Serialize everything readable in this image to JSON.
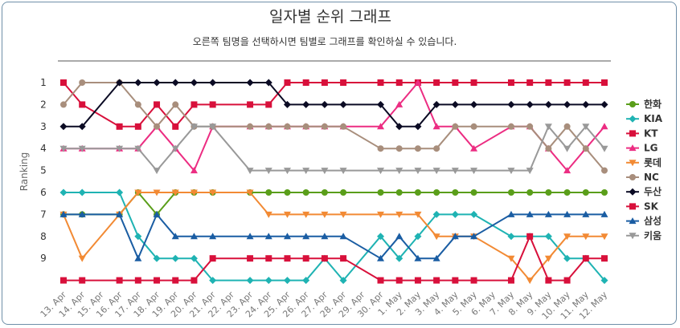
{
  "chart_data": {
    "type": "line",
    "title": "일자별 순위 그래프",
    "subtitle": "오른쪽 팀명을 선택하시면 팀별로 그래프를 확인하실 수 있습니다.",
    "ylabel": "Ranking",
    "xlabel": "",
    "yticks": [
      "1",
      "2",
      "3",
      "4",
      "5",
      "6",
      "7",
      "8",
      "9"
    ],
    "y_reversed": true,
    "ylim": [
      1,
      10
    ],
    "legend_position": "right",
    "categories": [
      "13. Apr",
      "14. Apr",
      "15. Apr",
      "16. Apr",
      "17. Apr",
      "18. Apr",
      "19. Apr",
      "20. Apr",
      "21. Apr",
      "22. Apr",
      "23. Apr",
      "24. Apr",
      "25. Apr",
      "26. Apr",
      "27. Apr",
      "28. Apr",
      "29. Apr",
      "30. Apr",
      "1. May",
      "2. May",
      "3. May",
      "4. May",
      "5. May",
      "6. May",
      "7. May",
      "8. May",
      "9. May",
      "10. May",
      "11. May",
      "12. May"
    ],
    "series": [
      {
        "name": "한화",
        "color": "#5a9e1a",
        "marker": "circle",
        "values": [
          7,
          7,
          null,
          7,
          6,
          7,
          6,
          6,
          6,
          null,
          6,
          6,
          6,
          6,
          6,
          6,
          null,
          6,
          6,
          6,
          6,
          6,
          6,
          null,
          6,
          6,
          6,
          6,
          6,
          6
        ]
      },
      {
        "name": "KIA",
        "color": "#1fb3b3",
        "marker": "diamond",
        "values": [
          6,
          6,
          null,
          6,
          8,
          9,
          9,
          9,
          10,
          null,
          10,
          10,
          10,
          10,
          9,
          10,
          null,
          8,
          9,
          8,
          7,
          7,
          7,
          null,
          8,
          8,
          8,
          9,
          9,
          10
        ]
      },
      {
        "name": "KT",
        "color": "#d8103b",
        "marker": "square",
        "values": [
          1,
          2,
          null,
          3,
          3,
          2,
          3,
          2,
          2,
          null,
          2,
          2,
          1,
          1,
          1,
          1,
          null,
          1,
          1,
          1,
          1,
          1,
          1,
          null,
          1,
          1,
          1,
          1,
          1,
          1
        ]
      },
      {
        "name": "LG",
        "color": "#ec2d82",
        "marker": "triangle",
        "values": [
          4,
          4,
          null,
          4,
          4,
          3,
          4,
          5,
          3,
          null,
          3,
          3,
          3,
          3,
          3,
          3,
          null,
          3,
          2,
          1,
          3,
          3,
          4,
          null,
          3,
          3,
          4,
          5,
          4,
          3
        ]
      },
      {
        "name": "롯데",
        "color": "#f28a34",
        "marker": "triangle-down",
        "values": [
          7,
          9,
          null,
          7,
          6,
          6,
          6,
          6,
          6,
          null,
          6,
          7,
          7,
          7,
          7,
          7,
          null,
          7,
          7,
          7,
          8,
          8,
          8,
          null,
          9,
          10,
          9,
          8,
          8,
          8
        ]
      },
      {
        "name": "NC",
        "color": "#a88e7c",
        "marker": "circle",
        "values": [
          2,
          1,
          null,
          1,
          2,
          3,
          2,
          3,
          3,
          null,
          3,
          3,
          3,
          3,
          3,
          3,
          null,
          4,
          4,
          4,
          4,
          3,
          3,
          null,
          3,
          3,
          4,
          3,
          4,
          5
        ]
      },
      {
        "name": "두산",
        "color": "#0b0b24",
        "marker": "diamond",
        "values": [
          3,
          3,
          null,
          1,
          1,
          1,
          1,
          1,
          1,
          null,
          1,
          1,
          2,
          2,
          2,
          2,
          null,
          2,
          3,
          3,
          2,
          2,
          2,
          null,
          2,
          2,
          2,
          2,
          2,
          2
        ]
      },
      {
        "name": "SK",
        "color": "#d8103b",
        "marker": "square",
        "values": [
          10,
          10,
          null,
          10,
          10,
          10,
          10,
          10,
          9,
          null,
          9,
          9,
          9,
          9,
          9,
          9,
          null,
          10,
          10,
          10,
          10,
          10,
          10,
          null,
          10,
          8,
          10,
          10,
          9,
          9
        ]
      },
      {
        "name": "삼성",
        "color": "#1a5da3",
        "marker": "triangle",
        "values": [
          7,
          7,
          null,
          7,
          9,
          7,
          8,
          8,
          8,
          null,
          8,
          8,
          8,
          8,
          8,
          8,
          null,
          9,
          8,
          9,
          9,
          8,
          8,
          null,
          7,
          7,
          7,
          7,
          7,
          7
        ]
      },
      {
        "name": "키움",
        "color": "#999999",
        "marker": "triangle-down",
        "values": [
          4,
          4,
          null,
          4,
          4,
          5,
          4,
          3,
          3,
          null,
          5,
          5,
          5,
          5,
          5,
          5,
          null,
          5,
          5,
          5,
          5,
          5,
          5,
          null,
          5,
          5,
          3,
          4,
          3,
          4
        ]
      }
    ]
  }
}
